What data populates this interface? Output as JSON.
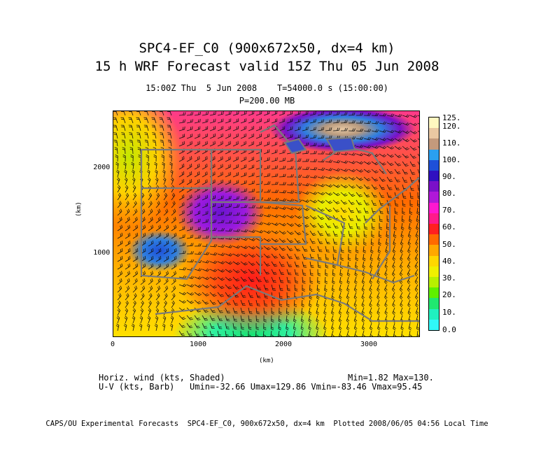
{
  "header": {
    "title_line1": "SPC4-EF_C0 (900x672x50, dx=4 km)",
    "title_line2": "15 h WRF Forecast valid 15Z Thu 05 Jun 2008",
    "time_line": "15:00Z Thu  5 Jun 2008    T=54000.0 s (15:00:00)",
    "level_line": "P=200.00 MB"
  },
  "map": {
    "x_axis": {
      "label": "(km)",
      "ticks": [
        "0",
        "1000",
        "2000",
        "3000"
      ]
    },
    "y_axis": {
      "label": "(km)",
      "ticks": [
        "1000",
        "2000"
      ]
    }
  },
  "colorbar": {
    "labels": [
      "125.",
      "120.",
      "110.",
      "100.",
      "90.",
      "80.",
      "70.",
      "60.",
      "50.",
      "40.",
      "30.",
      "20.",
      "10.",
      "0.0"
    ],
    "colors": [
      "#fff8c0",
      "#eac8a2",
      "#c49a7c",
      "#2aa0f0",
      "#1e50d8",
      "#3010c0",
      "#7a10c8",
      "#b018d8",
      "#ff18d0",
      "#ff1a8a",
      "#ff2020",
      "#ff6a00",
      "#ffa800",
      "#ffd700",
      "#f0f000",
      "#b8f000",
      "#5ff000",
      "#20e870",
      "#20f0c0",
      "#30f8f8"
    ]
  },
  "footer": {
    "field_line": "Horiz. wind (kts, Shaded)",
    "minmax": "Min=1.82 Max=130.",
    "barb_line": "U-V (kts, Barb)   Umin=-32.66 Umax=129.86 Vmin=-83.46 Vmax=95.45",
    "credit": "CAPS/OU Experimental Forecasts  SPC4-EF_C0, 900x672x50, dx=4 km  Plotted 2008/06/05 04:56 Local Time"
  }
}
